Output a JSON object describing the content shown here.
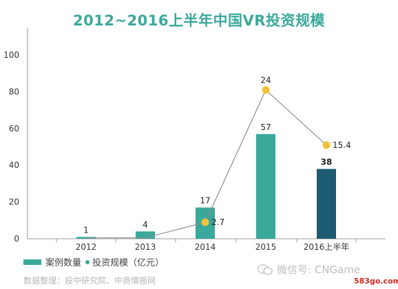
{
  "watermark": {
    "wechat_text": "微信号: CNGame",
    "site": "583go.com"
  },
  "source": "数据整理：投中研究院、中商情报网",
  "colors": {
    "title": "#3aa89a",
    "bar_main": "#3aa89a",
    "bar_last": "#1d5b73",
    "line": "#8c8c8c",
    "point": "#f0c23a"
  },
  "chart_data": {
    "type": "bar",
    "title": "2012~2016上半年中国VR投资规模",
    "categories": [
      "2012",
      "2013",
      "2014",
      "2015",
      "2016上半年"
    ],
    "ylim": [
      0,
      100
    ],
    "yticks": [
      0,
      20,
      40,
      60,
      80,
      100
    ],
    "grid": false,
    "legend_position": "bottom-left",
    "series": [
      {
        "name": "案例数量",
        "type": "bar",
        "values": [
          1,
          4,
          17,
          57,
          38
        ]
      },
      {
        "name": "投资规模（亿元）",
        "type": "line",
        "values": [
          1,
          1,
          2.7,
          24,
          15.4
        ],
        "point_labels": [
          "",
          "",
          "2.7",
          "24",
          "15.4"
        ]
      }
    ],
    "line_y_values": [
      0.5,
      0.5,
      9,
      81,
      51
    ]
  }
}
